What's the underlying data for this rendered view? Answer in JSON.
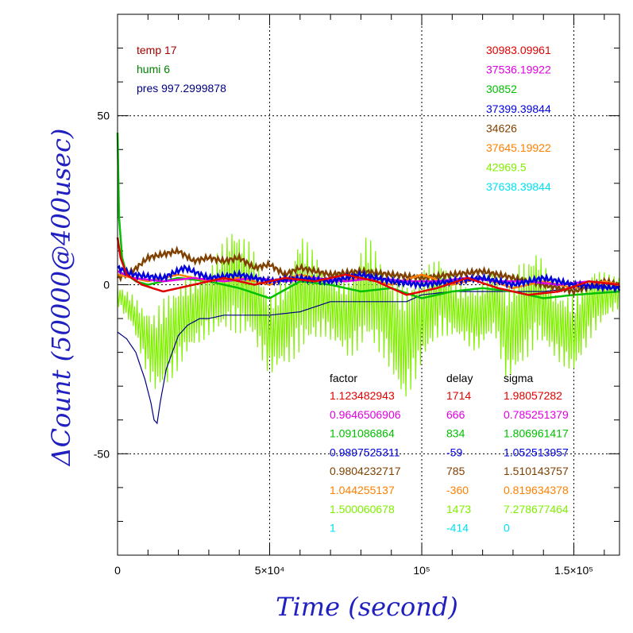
{
  "chart_data": {
    "type": "line",
    "xlabel": "Time (second)",
    "ylabel": "ΔCount (50000@400usec)",
    "xlim": [
      0,
      165000
    ],
    "ylim": [
      -80,
      80
    ],
    "x_ticks": [
      {
        "value": 0,
        "label": "0"
      },
      {
        "value": 50000,
        "label": "5×10⁴"
      },
      {
        "value": 100000,
        "label": "10⁵"
      },
      {
        "value": 150000,
        "label": "1.5×10⁵"
      }
    ],
    "y_ticks": [
      {
        "value": 50,
        "label": "50"
      },
      {
        "value": 0,
        "label": "0"
      },
      {
        "value": -50,
        "label": "-50"
      }
    ],
    "grid": true,
    "env": [
      {
        "text": "temp 17",
        "color": "#a00000"
      },
      {
        "text": "humi 6",
        "color": "#008000"
      },
      {
        "text": "pres 997.2999878",
        "color": "#000080"
      }
    ],
    "table_headers": {
      "factor": "factor",
      "delay": "delay",
      "sigma": "sigma"
    },
    "series": [
      {
        "color": "#e00000",
        "base": "30983.09961",
        "factor": "1.123482943",
        "delay": "1714",
        "sigma": "1.98057282",
        "x": [
          0,
          1000,
          3000,
          8000,
          15000,
          25000,
          35000,
          45000,
          55000,
          65000,
          75000,
          85000,
          95000,
          105000,
          115000,
          125000,
          135000,
          145000,
          155000,
          165000
        ],
        "y": [
          14,
          8,
          3,
          0,
          -2,
          0,
          2,
          0,
          2,
          1,
          3,
          1,
          -3,
          -1,
          2,
          -1,
          -3,
          -2,
          1,
          0
        ]
      },
      {
        "color": "#e000e0",
        "base": "37536.19922",
        "factor": "0.9646506906",
        "delay": "666",
        "sigma": "0.785251379",
        "x": [
          0,
          5000,
          15000,
          25000,
          35000,
          45000,
          55000,
          65000,
          75000,
          85000,
          95000,
          105000,
          115000,
          125000,
          135000,
          145000,
          155000,
          165000
        ],
        "y": [
          4,
          2,
          1,
          2,
          1,
          2,
          1,
          2,
          1,
          2,
          1,
          1,
          2,
          1,
          1,
          0,
          1,
          0
        ]
      },
      {
        "color": "#00c000",
        "base": "30852",
        "factor": "1.091086864",
        "delay": "834",
        "sigma": "1.806961417",
        "x": [
          0,
          500,
          1500,
          3000,
          6000,
          10000,
          20000,
          30000,
          40000,
          50000,
          60000,
          70000,
          80000,
          90000,
          100000,
          110000,
          120000,
          130000,
          140000,
          150000,
          165000
        ],
        "y": [
          45,
          20,
          8,
          3,
          1,
          0,
          2,
          1,
          -1,
          -4,
          1,
          0,
          -2,
          -1,
          -4,
          -2,
          -1,
          -2,
          -4,
          -3,
          -2
        ]
      },
      {
        "color": "#0000e0",
        "base": "37399.39844",
        "factor": "0.9897525311",
        "delay": "-59",
        "sigma": "1.052513957",
        "x": [
          0,
          5000,
          15000,
          22000,
          30000,
          40000,
          50000,
          60000,
          70000,
          80000,
          90000,
          100000,
          110000,
          120000,
          130000,
          140000,
          150000,
          165000
        ],
        "y": [
          5,
          3,
          2,
          5,
          2,
          3,
          1,
          2,
          1,
          3,
          1,
          0,
          1,
          2,
          0,
          2,
          0,
          -1
        ]
      },
      {
        "color": "#804000",
        "base": "34626",
        "factor": "0.9804232717",
        "delay": "785",
        "sigma": "1.510143757",
        "x": [
          0,
          5000,
          10000,
          20000,
          25000,
          30000,
          35000,
          40000,
          45000,
          50000,
          55000,
          60000,
          70000,
          80000,
          90000,
          100000,
          110000,
          120000,
          130000,
          140000,
          150000,
          160000,
          165000
        ],
        "y": [
          2,
          4,
          8,
          10,
          7,
          8,
          7,
          8,
          5,
          6,
          3,
          5,
          3,
          4,
          3,
          2,
          3,
          4,
          2,
          0,
          -2,
          1,
          0
        ]
      },
      {
        "color": "#ff8000",
        "base": "37645.19922",
        "factor": "1.044255137",
        "delay": "-360",
        "sigma": "0.819634378",
        "x": [
          0,
          10000,
          20000,
          30000,
          40000,
          50000,
          60000,
          70000,
          80000,
          90000,
          100000,
          110000,
          120000,
          130000,
          140000,
          150000,
          160000,
          165000
        ],
        "y": [
          3,
          1,
          3,
          1,
          2,
          0,
          3,
          1,
          2,
          0,
          3,
          0,
          2,
          -1,
          1,
          -1,
          1,
          0
        ]
      },
      {
        "color": "#80f000",
        "base": "42969.5",
        "factor": "1.500060678",
        "delay": "1473",
        "sigma": "7.278677464",
        "x": [
          0,
          5000,
          8000,
          12000,
          16000,
          22000,
          30000,
          38000,
          44000,
          50000,
          56000,
          60000,
          68000,
          76000,
          82000,
          88000,
          94000,
          100000,
          106000,
          112000,
          118000,
          124000,
          128000,
          132000,
          138000,
          144000,
          150000,
          156000,
          162000,
          165000
        ],
        "y": [
          -3,
          -8,
          -14,
          -20,
          -17,
          -10,
          -5,
          2,
          -2,
          -15,
          -10,
          -2,
          -5,
          -10,
          -1,
          -8,
          -18,
          -10,
          -3,
          -8,
          -10,
          -5,
          -15,
          -10,
          -3,
          -12,
          -15,
          -5,
          -3,
          -2
        ],
        "amp": [
          3,
          5,
          8,
          12,
          14,
          12,
          10,
          16,
          14,
          12,
          14,
          18,
          10,
          12,
          16,
          14,
          18,
          14,
          12,
          8,
          10,
          10,
          14,
          16,
          14,
          10,
          12,
          10,
          6,
          5
        ]
      },
      {
        "color": "#00e0f0",
        "base": "37638.39844",
        "factor": "1",
        "delay": "-414",
        "sigma": "0",
        "x": [],
        "y": []
      },
      {
        "color": "#000080",
        "x": [
          0,
          3000,
          6000,
          9000,
          11000,
          12000,
          13000,
          14000,
          16000,
          18000,
          20000,
          23000,
          27000,
          30000,
          35000,
          40000,
          50000,
          60000,
          70000,
          80000,
          88000,
          95000,
          100000,
          110000,
          120000,
          130000,
          140000,
          150000,
          165000
        ],
        "y": [
          -14,
          -16,
          -20,
          -28,
          -35,
          -40,
          -41,
          -35,
          -25,
          -20,
          -15,
          -12,
          -10,
          -10,
          -9,
          -9,
          -9,
          -8,
          -5,
          -5,
          -5,
          -5,
          -3,
          -2,
          -2,
          -2,
          -2,
          -1,
          -1
        ]
      }
    ]
  }
}
